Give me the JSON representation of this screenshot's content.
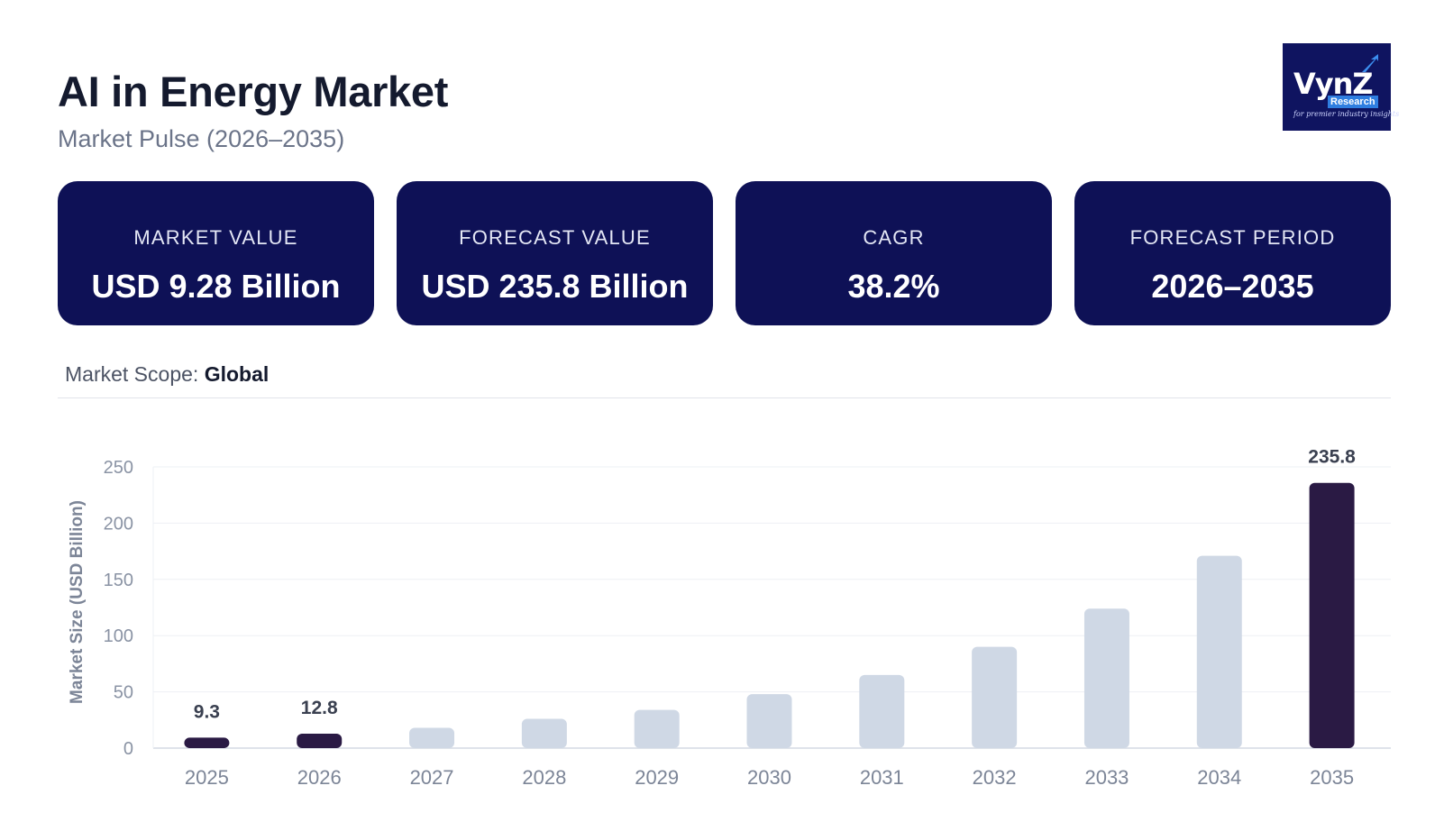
{
  "header": {
    "title": "AI in Energy Market",
    "subtitle": "Market Pulse (2026–2035)"
  },
  "logo": {
    "brand": "VynZ",
    "sub": "Research",
    "tagline": "for premier industry insights"
  },
  "cards": [
    {
      "label": "MARKET VALUE",
      "value": "USD 9.28 Billion"
    },
    {
      "label": "FORECAST VALUE",
      "value": "USD 235.8 Billion"
    },
    {
      "label": "CAGR",
      "value": "38.2%"
    },
    {
      "label": "FORECAST PERIOD",
      "value": "2026–2035"
    }
  ],
  "scope": {
    "label": "Market Scope: ",
    "value": "Global"
  },
  "colors": {
    "card_bg": "#0e1156",
    "highlight_bar": "#2a1a44",
    "regular_bar": "#cfd8e5"
  },
  "chart_data": {
    "type": "bar",
    "categories": [
      "2025",
      "2026",
      "2027",
      "2028",
      "2029",
      "2030",
      "2031",
      "2032",
      "2033",
      "2034",
      "2035"
    ],
    "values": [
      9.3,
      12.8,
      18,
      26,
      34,
      48,
      65,
      90,
      124,
      171,
      235.8
    ],
    "highlighted": [
      true,
      true,
      false,
      false,
      false,
      false,
      false,
      false,
      false,
      false,
      true
    ],
    "data_labels": [
      "9.3",
      "12.8",
      "",
      "",
      "",
      "",
      "",
      "",
      "",
      "",
      "235.8"
    ],
    "ylabel": "Market Size (USD Billion)",
    "xlabel": "",
    "ylim": [
      0,
      250
    ],
    "yticks": [
      0,
      50,
      100,
      150,
      200,
      250
    ],
    "grid": true
  }
}
